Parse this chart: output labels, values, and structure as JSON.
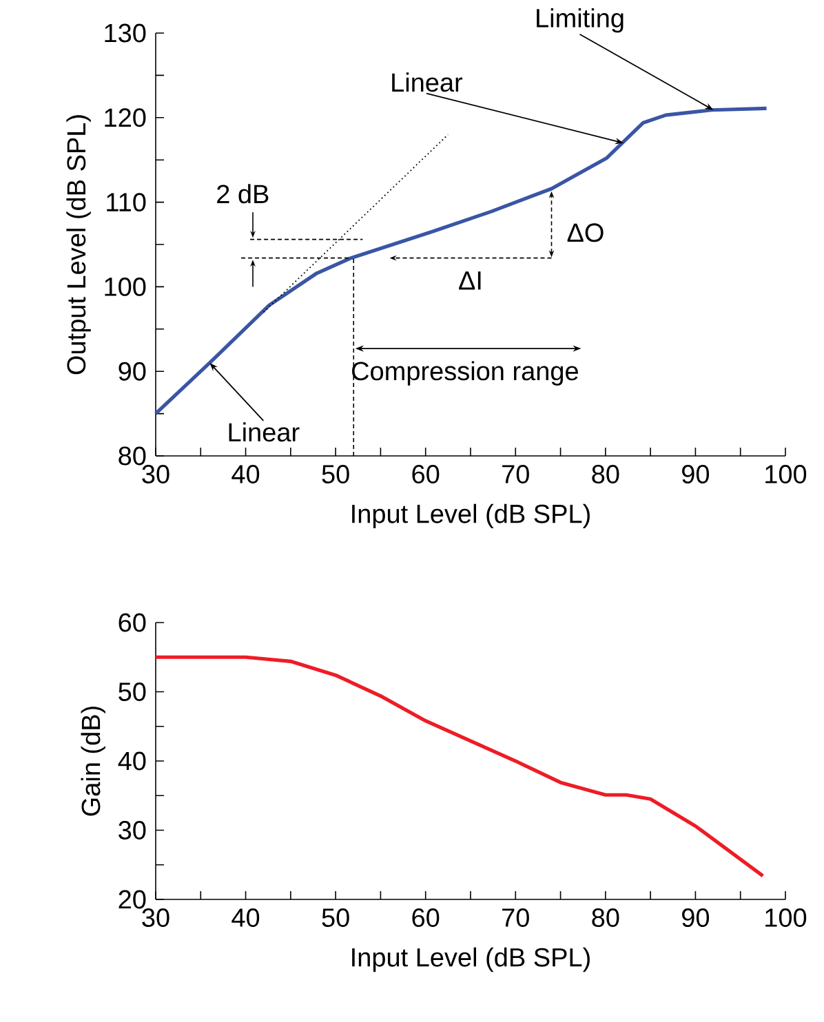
{
  "chart_data": [
    {
      "type": "line",
      "xlabel": "Input Level (dB SPL)",
      "ylabel": "Output Level (dB SPL)",
      "x": [
        30,
        36,
        42.6,
        47.9,
        51.7,
        60.7,
        67.3,
        74,
        80.1,
        84.2,
        86.7,
        91.8,
        97.9
      ],
      "series": [
        {
          "color": "#3a55a4",
          "values": [
            85,
            91,
            97.8,
            101.6,
            103.4,
            106.5,
            108.9,
            111.6,
            115.2,
            119.4,
            120.3,
            120.9,
            121.1
          ]
        }
      ],
      "xlim": [
        30,
        100
      ],
      "ylim": [
        80,
        130
      ],
      "xticks": [
        30,
        40,
        50,
        60,
        70,
        80,
        90,
        100
      ],
      "yticks": [
        80,
        90,
        100,
        110,
        120,
        130
      ],
      "annotations": [
        {
          "text": "Limiting",
          "x": 92,
          "y": 120.9
        },
        {
          "text": "Linear",
          "x": 82,
          "y": 117
        },
        {
          "text": "Linear",
          "x": 36,
          "y": 91
        },
        "2 dB",
        "ΔO",
        "ΔI",
        "Compression range"
      ]
    },
    {
      "type": "line",
      "xlabel": "Input Level (dB SPL)",
      "ylabel": "Gain (dB)",
      "x": [
        30,
        40,
        45,
        50,
        55,
        60,
        70,
        75,
        80,
        82.3,
        85,
        90,
        97.5
      ],
      "series": [
        {
          "color": "#ee1c25",
          "values": [
            55,
            55,
            54.4,
            52.4,
            49.4,
            45.8,
            40,
            36.9,
            35.1,
            35.1,
            34.5,
            30.6,
            23.4
          ]
        }
      ],
      "xlim": [
        30,
        100
      ],
      "ylim": [
        20,
        60
      ],
      "xticks": [
        30,
        40,
        50,
        60,
        70,
        80,
        90,
        100
      ],
      "yticks": [
        20,
        30,
        40,
        50,
        60
      ]
    }
  ]
}
